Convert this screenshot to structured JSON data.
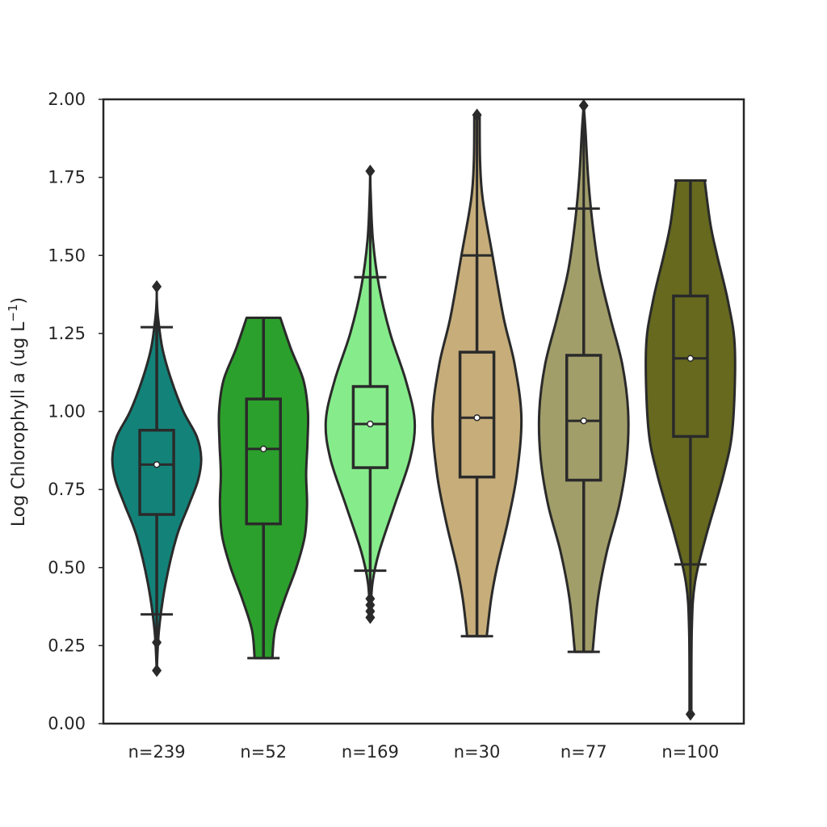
{
  "chart_data": {
    "type": "violin",
    "title": "",
    "xlabel": "",
    "ylabel": "Log Chlorophyll a (ug L",
    "ylabel_superscript": "−1",
    "ylabel_close": ")",
    "ylim": [
      0,
      2
    ],
    "yticks": [
      "0.00",
      "0.25",
      "0.50",
      "0.75",
      "1.00",
      "1.25",
      "1.50",
      "1.75",
      "2.00"
    ],
    "grid": false,
    "categories": [
      "n=239",
      "n=52",
      "n=169",
      "n=30",
      "n=77",
      "n=100"
    ],
    "groups": [
      {
        "label": "n=239",
        "color": "#13837a",
        "median": 0.83,
        "q1": 0.67,
        "q3": 0.94,
        "whisker_low": 0.35,
        "whisker_high": 1.27,
        "outliers": [
          1.4,
          0.26,
          0.17
        ],
        "density": [
          [
            0.17,
            0
          ],
          [
            0.3,
            0.05
          ],
          [
            0.45,
            0.2
          ],
          [
            0.6,
            0.45
          ],
          [
            0.7,
            0.72
          ],
          [
            0.78,
            0.93
          ],
          [
            0.85,
            1
          ],
          [
            0.92,
            0.9
          ],
          [
            1.0,
            0.6
          ],
          [
            1.1,
            0.33
          ],
          [
            1.2,
            0.13
          ],
          [
            1.3,
            0.03
          ],
          [
            1.36,
            0
          ]
        ]
      },
      {
        "label": "n=52",
        "color": "#2ca02c",
        "median": 0.88,
        "q1": 0.64,
        "q3": 1.04,
        "whisker_low": 0.21,
        "whisker_high": 1.3,
        "outliers": [],
        "density": [
          [
            0.21,
            0.2
          ],
          [
            0.3,
            0.26
          ],
          [
            0.4,
            0.48
          ],
          [
            0.5,
            0.74
          ],
          [
            0.6,
            0.93
          ],
          [
            0.7,
            0.98
          ],
          [
            0.8,
            0.96
          ],
          [
            0.9,
            0.99
          ],
          [
            1.0,
            1.0
          ],
          [
            1.1,
            0.9
          ],
          [
            1.2,
            0.62
          ],
          [
            1.3,
            0.38
          ]
        ]
      },
      {
        "label": "n=169",
        "color": "#86ec8b",
        "median": 0.96,
        "q1": 0.82,
        "q3": 1.08,
        "whisker_low": 0.49,
        "whisker_high": 1.43,
        "outliers": [
          1.77,
          0.4,
          0.38,
          0.36,
          0.34
        ],
        "density": [
          [
            0.34,
            0
          ],
          [
            0.45,
            0.05
          ],
          [
            0.55,
            0.2
          ],
          [
            0.7,
            0.55
          ],
          [
            0.85,
            0.9
          ],
          [
            0.97,
            1
          ],
          [
            1.1,
            0.8
          ],
          [
            1.25,
            0.45
          ],
          [
            1.4,
            0.2
          ],
          [
            1.55,
            0.06
          ],
          [
            1.7,
            0.01
          ],
          [
            1.77,
            0
          ]
        ]
      },
      {
        "label": "n=30",
        "color": "#c6ad7a",
        "median": 0.98,
        "q1": 0.79,
        "q3": 1.19,
        "whisker_low": 0.28,
        "whisker_high": 1.5,
        "outliers": [
          1.95
        ],
        "density": [
          [
            0.28,
            0.22
          ],
          [
            0.4,
            0.32
          ],
          [
            0.5,
            0.45
          ],
          [
            0.65,
            0.7
          ],
          [
            0.8,
            0.9
          ],
          [
            0.98,
            1
          ],
          [
            1.15,
            0.85
          ],
          [
            1.3,
            0.6
          ],
          [
            1.5,
            0.35
          ],
          [
            1.68,
            0.13
          ],
          [
            1.8,
            0.07
          ],
          [
            1.95,
            0.06
          ]
        ]
      },
      {
        "label": "n=77",
        "color": "#a29e6a",
        "median": 0.97,
        "q1": 0.78,
        "q3": 1.18,
        "whisker_low": 0.23,
        "whisker_high": 1.65,
        "outliers": [
          1.98
        ],
        "density": [
          [
            0.23,
            0.2
          ],
          [
            0.4,
            0.32
          ],
          [
            0.55,
            0.52
          ],
          [
            0.7,
            0.8
          ],
          [
            0.85,
            0.97
          ],
          [
            1.0,
            1
          ],
          [
            1.15,
            0.87
          ],
          [
            1.3,
            0.6
          ],
          [
            1.45,
            0.35
          ],
          [
            1.6,
            0.2
          ],
          [
            1.75,
            0.1
          ],
          [
            1.9,
            0.04
          ],
          [
            1.98,
            0
          ]
        ]
      },
      {
        "label": "n=100",
        "color": "#66691e",
        "median": 1.17,
        "q1": 0.92,
        "q3": 1.37,
        "whisker_low": 0.51,
        "whisker_high": 1.74,
        "outliers": [
          0.03
        ],
        "density": [
          [
            0.03,
            0.02
          ],
          [
            0.3,
            0.03
          ],
          [
            0.45,
            0.1
          ],
          [
            0.6,
            0.35
          ],
          [
            0.8,
            0.75
          ],
          [
            0.95,
            0.95
          ],
          [
            1.2,
            1
          ],
          [
            1.35,
            0.85
          ],
          [
            1.5,
            0.6
          ],
          [
            1.6,
            0.45
          ],
          [
            1.74,
            0.32
          ]
        ]
      }
    ]
  }
}
